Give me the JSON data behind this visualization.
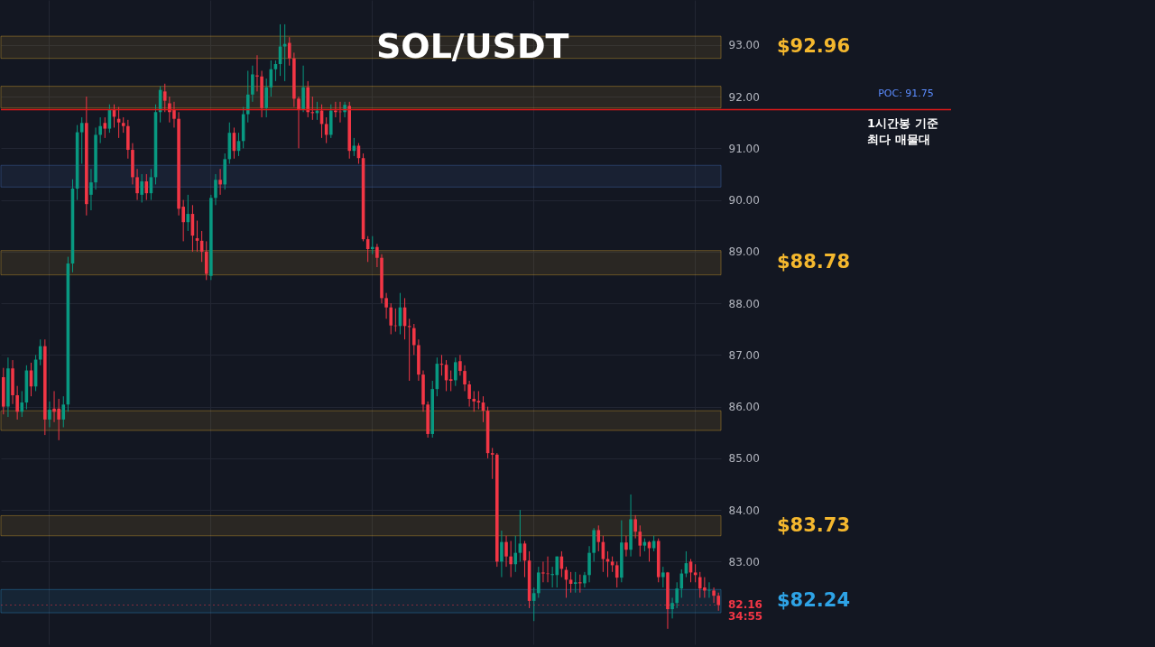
{
  "chart_data": {
    "type": "candlestick",
    "title": "SOL/USDT",
    "categories": [
      null,
      null,
      null,
      null,
      null,
      null,
      null,
      null,
      null,
      null,
      null,
      null,
      null,
      null,
      null,
      null,
      null,
      null,
      null,
      null,
      null,
      null,
      null,
      null,
      null,
      null,
      null,
      null,
      null,
      null,
      null,
      null,
      null,
      null,
      null,
      null,
      null,
      null,
      null,
      null,
      null,
      null,
      null,
      null,
      null,
      null,
      null,
      null,
      null,
      null,
      null,
      null,
      null,
      null,
      null,
      null,
      null,
      null,
      null,
      null,
      null,
      null,
      null,
      null,
      null,
      null,
      null,
      null,
      null,
      null,
      null,
      null,
      null,
      null,
      null,
      null,
      null,
      null,
      null,
      null,
      null,
      null,
      null,
      null,
      null,
      null,
      null,
      null,
      null,
      null,
      null,
      null,
      null,
      null,
      null,
      null,
      null,
      null,
      null,
      null,
      null,
      null,
      null,
      null,
      null,
      null,
      null,
      null,
      null,
      null,
      null,
      null,
      null,
      null,
      null,
      null,
      null,
      null,
      null,
      null,
      null,
      null,
      null,
      null,
      null,
      null,
      null,
      null,
      null,
      null,
      null,
      null,
      null,
      null,
      null,
      null,
      null,
      null,
      null,
      null,
      null,
      null,
      null,
      null,
      null,
      null,
      null,
      null,
      null,
      null,
      null,
      null,
      null,
      null,
      null,
      null
    ],
    "ohlc": [
      [
        86.57,
        86.75,
        85.85,
        86.0
      ],
      [
        86.0,
        86.95,
        85.8,
        86.74
      ],
      [
        86.74,
        86.9,
        86.05,
        86.22
      ],
      [
        86.22,
        86.4,
        85.75,
        85.9
      ],
      [
        85.9,
        86.3,
        85.8,
        86.08
      ],
      [
        86.08,
        86.8,
        85.95,
        86.7
      ],
      [
        86.7,
        86.85,
        86.2,
        86.39
      ],
      [
        86.39,
        87.0,
        86.3,
        86.91
      ],
      [
        86.91,
        87.3,
        86.8,
        87.17
      ],
      [
        87.17,
        87.3,
        85.45,
        85.75
      ],
      [
        85.75,
        86.1,
        85.6,
        85.94
      ],
      [
        85.96,
        86.3,
        85.7,
        85.9
      ],
      [
        85.96,
        86.15,
        85.35,
        85.75
      ],
      [
        85.75,
        86.2,
        85.6,
        86.04
      ],
      [
        86.04,
        88.9,
        85.9,
        88.77
      ],
      [
        88.77,
        90.4,
        88.6,
        90.22
      ],
      [
        90.22,
        91.45,
        90.0,
        91.31
      ],
      [
        91.31,
        91.6,
        90.7,
        91.49
      ],
      [
        91.49,
        92.0,
        89.7,
        89.92
      ],
      [
        90.1,
        90.6,
        89.8,
        90.34
      ],
      [
        90.34,
        91.4,
        90.2,
        91.26
      ],
      [
        91.26,
        91.6,
        91.1,
        91.43
      ],
      [
        91.49,
        91.6,
        91.2,
        91.38
      ],
      [
        91.38,
        91.85,
        91.3,
        91.75
      ],
      [
        91.75,
        91.85,
        91.4,
        91.61
      ],
      [
        91.57,
        91.8,
        91.2,
        91.5
      ],
      [
        91.49,
        91.6,
        91.3,
        91.43
      ],
      [
        91.43,
        91.55,
        90.8,
        90.97
      ],
      [
        90.97,
        91.1,
        90.3,
        90.44
      ],
      [
        90.44,
        90.6,
        90.0,
        90.13
      ],
      [
        90.1,
        90.5,
        89.95,
        90.36
      ],
      [
        90.36,
        90.5,
        90.0,
        90.13
      ],
      [
        90.13,
        90.6,
        90.0,
        90.44
      ],
      [
        90.44,
        91.85,
        90.3,
        91.7
      ],
      [
        91.7,
        92.2,
        91.5,
        92.13
      ],
      [
        92.1,
        92.25,
        91.7,
        91.92
      ],
      [
        91.87,
        92.0,
        91.5,
        91.7
      ],
      [
        91.75,
        91.9,
        91.4,
        91.57
      ],
      [
        91.57,
        91.7,
        89.7,
        89.83
      ],
      [
        89.87,
        90.0,
        89.2,
        89.57
      ],
      [
        89.57,
        90.1,
        89.4,
        89.73
      ],
      [
        89.73,
        89.9,
        89.0,
        89.31
      ],
      [
        89.26,
        89.6,
        89.0,
        89.21
      ],
      [
        89.21,
        89.4,
        88.8,
        89.0
      ],
      [
        89.0,
        89.2,
        88.45,
        88.57
      ],
      [
        88.53,
        90.1,
        88.45,
        90.04
      ],
      [
        90.04,
        90.5,
        89.9,
        90.39
      ],
      [
        90.39,
        90.6,
        90.1,
        90.3
      ],
      [
        90.3,
        90.9,
        90.2,
        90.79
      ],
      [
        90.79,
        91.5,
        90.7,
        91.3
      ],
      [
        91.3,
        91.4,
        90.8,
        90.95
      ],
      [
        90.95,
        91.3,
        90.85,
        91.14
      ],
      [
        91.14,
        91.8,
        91.0,
        91.66
      ],
      [
        91.66,
        92.5,
        91.5,
        92.04
      ],
      [
        92.04,
        92.6,
        91.9,
        92.43
      ],
      [
        92.41,
        92.8,
        92.1,
        92.39
      ],
      [
        92.39,
        92.5,
        91.6,
        91.78
      ],
      [
        91.78,
        92.35,
        91.6,
        92.18
      ],
      [
        92.18,
        92.7,
        92.0,
        92.53
      ],
      [
        92.53,
        92.7,
        92.3,
        92.63
      ],
      [
        92.63,
        93.4,
        92.4,
        92.97
      ],
      [
        92.97,
        93.4,
        92.3,
        93.02
      ],
      [
        93.04,
        93.15,
        92.6,
        92.74
      ],
      [
        92.74,
        92.85,
        91.8,
        91.96
      ],
      [
        91.96,
        92.0,
        91.0,
        91.75
      ],
      [
        91.75,
        92.6,
        91.7,
        92.18
      ],
      [
        92.18,
        92.3,
        91.6,
        91.7
      ],
      [
        91.7,
        92.0,
        91.55,
        91.68
      ],
      [
        91.68,
        91.9,
        91.55,
        91.73
      ],
      [
        91.73,
        91.85,
        91.2,
        91.47
      ],
      [
        91.47,
        91.6,
        91.1,
        91.26
      ],
      [
        91.26,
        91.85,
        91.2,
        91.73
      ],
      [
        91.73,
        91.9,
        91.6,
        91.7
      ],
      [
        91.71,
        91.9,
        91.5,
        91.7
      ],
      [
        91.7,
        91.9,
        91.6,
        91.84
      ],
      [
        91.82,
        91.9,
        90.8,
        90.95
      ],
      [
        90.95,
        91.2,
        90.85,
        91.05
      ],
      [
        91.05,
        91.1,
        90.7,
        90.81
      ],
      [
        90.81,
        90.9,
        89.2,
        89.24
      ],
      [
        89.24,
        89.3,
        88.8,
        89.05
      ],
      [
        89.05,
        89.3,
        88.95,
        89.09
      ],
      [
        89.09,
        89.15,
        88.7,
        88.88
      ],
      [
        88.88,
        88.95,
        88.0,
        88.1
      ],
      [
        88.1,
        88.2,
        87.7,
        87.92
      ],
      [
        87.92,
        88.0,
        87.4,
        87.57
      ],
      [
        87.57,
        87.9,
        87.45,
        87.56
      ],
      [
        87.56,
        88.2,
        87.4,
        87.92
      ],
      [
        87.92,
        88.1,
        87.3,
        87.56
      ],
      [
        87.56,
        87.7,
        86.5,
        87.54
      ],
      [
        87.52,
        87.6,
        87.0,
        87.19
      ],
      [
        87.19,
        87.3,
        86.5,
        86.62
      ],
      [
        86.62,
        86.7,
        85.9,
        86.04
      ],
      [
        86.04,
        86.1,
        85.4,
        85.47
      ],
      [
        85.47,
        86.5,
        85.4,
        86.34
      ],
      [
        86.34,
        86.95,
        86.2,
        86.83
      ],
      [
        86.83,
        87.0,
        86.6,
        86.81
      ],
      [
        86.81,
        86.9,
        86.3,
        86.51
      ],
      [
        86.53,
        86.7,
        86.3,
        86.5
      ],
      [
        86.51,
        86.95,
        86.4,
        86.86
      ],
      [
        86.88,
        87.0,
        86.6,
        86.69
      ],
      [
        86.69,
        86.8,
        86.3,
        86.43
      ],
      [
        86.43,
        86.5,
        86.0,
        86.15
      ],
      [
        86.15,
        86.3,
        85.9,
        86.1
      ],
      [
        86.11,
        86.3,
        85.95,
        86.08
      ],
      [
        86.08,
        86.2,
        85.7,
        85.92
      ],
      [
        85.92,
        86.0,
        85.0,
        85.1
      ],
      [
        85.1,
        85.2,
        84.6,
        85.07
      ],
      [
        85.07,
        85.1,
        82.9,
        83.0
      ],
      [
        83.0,
        83.6,
        82.7,
        83.38
      ],
      [
        83.38,
        83.5,
        82.9,
        83.1
      ],
      [
        83.1,
        83.4,
        82.7,
        82.95
      ],
      [
        82.95,
        83.5,
        82.8,
        83.17
      ],
      [
        83.17,
        84.0,
        83.0,
        83.35
      ],
      [
        83.35,
        83.4,
        82.7,
        83.02
      ],
      [
        83.02,
        83.2,
        82.1,
        82.24
      ],
      [
        82.24,
        82.5,
        81.85,
        82.39
      ],
      [
        82.39,
        82.9,
        82.3,
        82.79
      ],
      [
        82.79,
        83.0,
        82.6,
        82.77
      ],
      [
        82.77,
        83.1,
        82.6,
        82.76
      ],
      [
        82.74,
        82.9,
        82.5,
        82.76
      ],
      [
        82.74,
        83.1,
        82.5,
        83.1
      ],
      [
        83.1,
        83.2,
        82.7,
        82.86
      ],
      [
        82.84,
        82.9,
        82.3,
        82.65
      ],
      [
        82.65,
        82.8,
        82.4,
        82.57
      ],
      [
        82.57,
        82.8,
        82.4,
        82.6
      ],
      [
        82.6,
        82.75,
        82.4,
        82.58
      ],
      [
        82.58,
        82.8,
        82.5,
        82.74
      ],
      [
        82.74,
        83.3,
        82.6,
        83.17
      ],
      [
        83.17,
        83.65,
        83.0,
        83.61
      ],
      [
        83.61,
        83.7,
        83.2,
        83.38
      ],
      [
        83.38,
        83.5,
        82.8,
        83.05
      ],
      [
        83.05,
        83.2,
        82.7,
        83.0
      ],
      [
        83.0,
        83.1,
        82.8,
        82.93
      ],
      [
        82.93,
        83.0,
        82.5,
        82.69
      ],
      [
        82.69,
        83.8,
        82.6,
        83.37
      ],
      [
        83.37,
        83.5,
        83.1,
        83.23
      ],
      [
        83.23,
        84.3,
        83.1,
        83.82
      ],
      [
        83.82,
        83.9,
        83.45,
        83.58
      ],
      [
        83.58,
        83.7,
        83.1,
        83.31
      ],
      [
        83.31,
        83.45,
        83.2,
        83.38
      ],
      [
        83.38,
        83.4,
        83.0,
        83.26
      ],
      [
        83.26,
        83.5,
        83.2,
        83.4
      ],
      [
        83.4,
        83.45,
        82.6,
        82.7
      ],
      [
        82.7,
        82.9,
        82.5,
        82.79
      ],
      [
        82.79,
        82.8,
        81.7,
        82.08
      ],
      [
        82.08,
        82.3,
        81.9,
        82.2
      ],
      [
        82.2,
        82.6,
        82.1,
        82.48
      ],
      [
        82.48,
        82.85,
        82.3,
        82.77
      ],
      [
        82.77,
        83.2,
        82.7,
        82.97
      ],
      [
        83.0,
        83.05,
        82.6,
        82.79
      ],
      [
        82.79,
        82.95,
        82.6,
        82.74
      ],
      [
        82.7,
        82.8,
        82.3,
        82.48
      ],
      [
        82.5,
        82.7,
        82.3,
        82.44
      ],
      [
        82.44,
        82.6,
        82.3,
        82.45
      ],
      [
        82.44,
        82.5,
        82.2,
        82.34
      ],
      [
        82.34,
        82.4,
        82.05,
        82.16
      ]
    ],
    "ylim": [
      81.4,
      93.87
    ],
    "yticks": [
      {
        "value": 83,
        "label": "83.00"
      },
      {
        "value": 84,
        "label": "84.00"
      },
      {
        "value": 85,
        "label": "85.00"
      },
      {
        "value": 86,
        "label": "86.00"
      },
      {
        "value": 87,
        "label": "87.00"
      },
      {
        "value": 88,
        "label": "88.00"
      },
      {
        "value": 89,
        "label": "89.00"
      },
      {
        "value": 90,
        "label": "90.00"
      },
      {
        "value": 91,
        "label": "91.00"
      },
      {
        "value": 92,
        "label": "92.00"
      },
      {
        "value": 93,
        "label": "93.00"
      }
    ],
    "tick_labels": "y",
    "grid": true,
    "bands": [
      {
        "axis": "y",
        "from": 92.74,
        "to": 93.17,
        "label": "$92.96",
        "color": "#f5b82e"
      },
      {
        "axis": "y",
        "from": 91.78,
        "to": 92.2,
        "label": null,
        "color": "#f5b82e"
      },
      {
        "axis": "y",
        "from": 90.25,
        "to": 90.67,
        "label": null,
        "color": "#4a7bd0"
      },
      {
        "axis": "y",
        "from": 88.55,
        "to": 89.02,
        "label": "$88.78",
        "color": "#f5b82e"
      },
      {
        "axis": "y",
        "from": 85.54,
        "to": 85.92,
        "label": null,
        "color": "#f5b82e"
      },
      {
        "axis": "y",
        "from": 83.5,
        "to": 83.89,
        "label": "$83.73",
        "color": "#f5b82e"
      },
      {
        "axis": "y",
        "from": 82.01,
        "to": 82.46,
        "label": "$82.24",
        "color": "#2ea3e6"
      }
    ],
    "ref_lines": [
      {
        "axis": "y",
        "value": 91.75,
        "label": "POC: 91.75",
        "color": "#e01919",
        "line_style": "solid"
      },
      {
        "axis": "y",
        "value": 82.16,
        "label": "82.16",
        "color": "#f23645",
        "line_style": "dotted"
      }
    ],
    "annotations": [
      "1시간봉 기준\n최다 매물대",
      "34:55"
    ]
  }
}
